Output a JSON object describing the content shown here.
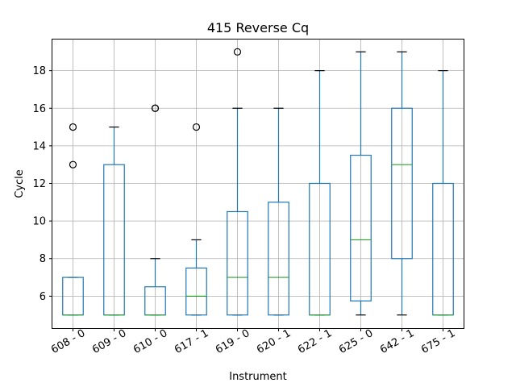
{
  "chart_data": {
    "type": "boxplot",
    "title": "415 Reverse Cq",
    "xlabel": "Instrument",
    "ylabel": "Cycle",
    "ylim": [
      4.3,
      19.7
    ],
    "yticks": [
      6,
      8,
      10,
      12,
      14,
      16,
      18
    ],
    "grid": true,
    "categories": [
      "608 - 0",
      "609 - 0",
      "610 - 0",
      "617 - 1",
      "619 - 0",
      "620 - 1",
      "622 - 1",
      "625 - 0",
      "642 - 1",
      "675 - 1"
    ],
    "boxes": [
      {
        "category": "608 - 0",
        "whisker_low": 5,
        "q1": 5,
        "median": 5,
        "q3": 7,
        "whisker_high": 7,
        "fliers": [
          13,
          15
        ]
      },
      {
        "category": "609 - 0",
        "whisker_low": 5,
        "q1": 5,
        "median": 5,
        "q3": 13,
        "whisker_high": 15,
        "fliers": []
      },
      {
        "category": "610 - 0",
        "whisker_low": 5,
        "q1": 5,
        "median": 5,
        "q3": 6.5,
        "whisker_high": 8,
        "fliers": [
          16,
          16
        ]
      },
      {
        "category": "617 - 1",
        "whisker_low": 5,
        "q1": 5,
        "median": 6,
        "q3": 7.5,
        "whisker_high": 9,
        "fliers": [
          15
        ]
      },
      {
        "category": "619 - 0",
        "whisker_low": 5,
        "q1": 5,
        "median": 7,
        "q3": 10.5,
        "whisker_high": 16,
        "fliers": [
          19
        ]
      },
      {
        "category": "620 - 1",
        "whisker_low": 5,
        "q1": 5,
        "median": 7,
        "q3": 11,
        "whisker_high": 16,
        "fliers": []
      },
      {
        "category": "622 - 1",
        "whisker_low": 5,
        "q1": 5,
        "median": 5,
        "q3": 12,
        "whisker_high": 18,
        "fliers": []
      },
      {
        "category": "625 - 0",
        "whisker_low": 5,
        "q1": 5.75,
        "median": 9,
        "q3": 13.5,
        "whisker_high": 19,
        "fliers": []
      },
      {
        "category": "642 - 1",
        "whisker_low": 5,
        "q1": 8,
        "median": 13,
        "q3": 16,
        "whisker_high": 19,
        "fliers": []
      },
      {
        "category": "675 - 1",
        "whisker_low": 5,
        "q1": 5,
        "median": 5,
        "q3": 12,
        "whisker_high": 18,
        "fliers": []
      }
    ],
    "colors": {
      "box": "#1f77b4",
      "median": "#2ca02c",
      "cap": "#000000",
      "flier": "#000000",
      "grid": "#b0b0b0"
    }
  }
}
